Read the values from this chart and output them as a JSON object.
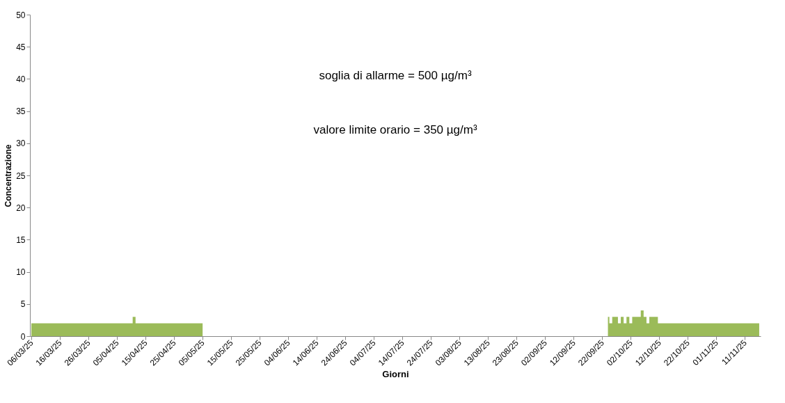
{
  "chart_data": {
    "xlabel": "Giorni",
    "ylabel": "Concentrazione",
    "annotations": [
      "soglia di allarme = 500 µg/m³",
      "valore limite orario = 350 µg/m³"
    ],
    "color": "#9bbb59",
    "ylim": [
      0,
      50
    ],
    "yticks": [
      0,
      5,
      10,
      15,
      20,
      25,
      30,
      35,
      40,
      45,
      50
    ],
    "grid": false,
    "categories": [
      "06/03/25",
      null,
      null,
      null,
      null,
      null,
      null,
      null,
      null,
      null,
      "16/03/25",
      null,
      null,
      null,
      null,
      null,
      null,
      null,
      null,
      null,
      "26/03/25",
      null,
      null,
      null,
      null,
      null,
      null,
      null,
      null,
      null,
      "05/04/25",
      null,
      null,
      null,
      null,
      null,
      null,
      null,
      null,
      null,
      "15/04/25",
      null,
      null,
      null,
      null,
      null,
      null,
      null,
      null,
      null,
      "25/04/25",
      null,
      null,
      null,
      null,
      null,
      null,
      null,
      null,
      null,
      "05/05/25",
      null,
      null,
      null,
      null,
      null,
      null,
      null,
      null,
      null,
      "15/05/25",
      null,
      null,
      null,
      null,
      null,
      null,
      null,
      null,
      null,
      "25/05/25",
      null,
      null,
      null,
      null,
      null,
      null,
      null,
      null,
      null,
      "04/06/25",
      null,
      null,
      null,
      null,
      null,
      null,
      null,
      null,
      null,
      "14/06/25",
      null,
      null,
      null,
      null,
      null,
      null,
      null,
      null,
      null,
      "24/06/25",
      null,
      null,
      null,
      null,
      null,
      null,
      null,
      null,
      null,
      "04/07/25",
      null,
      null,
      null,
      null,
      null,
      null,
      null,
      null,
      null,
      "14/07/25",
      null,
      null,
      null,
      null,
      null,
      null,
      null,
      null,
      null,
      "24/07/25",
      null,
      null,
      null,
      null,
      null,
      null,
      null,
      null,
      null,
      "03/08/25",
      null,
      null,
      null,
      null,
      null,
      null,
      null,
      null,
      null,
      "13/08/25",
      null,
      null,
      null,
      null,
      null,
      null,
      null,
      null,
      null,
      "23/08/25",
      null,
      null,
      null,
      null,
      null,
      null,
      null,
      null,
      null,
      "02/09/25",
      null,
      null,
      null,
      null,
      null,
      null,
      null,
      null,
      null,
      "12/09/25",
      null,
      null,
      null,
      null,
      null,
      null,
      null,
      null,
      null,
      "22/09/25",
      null,
      null,
      null,
      null,
      null,
      null,
      null,
      null,
      null,
      "02/10/25",
      null,
      null,
      null,
      null,
      null,
      null,
      null,
      null,
      null,
      "12/10/25",
      null,
      null,
      null,
      null,
      null,
      null,
      null,
      null,
      null,
      "22/10/25",
      null,
      null,
      null,
      null,
      null,
      null,
      null,
      null,
      null,
      "01/11/25",
      null,
      null,
      null,
      null,
      null,
      null,
      null,
      null,
      null,
      "11/11/25",
      null,
      null,
      null,
      null,
      null
    ],
    "type": "area",
    "values": [
      2,
      2,
      2,
      2,
      2,
      2,
      2,
      2,
      2,
      2,
      2,
      2,
      2,
      2,
      2,
      2,
      2,
      2,
      2,
      2,
      2,
      2,
      2,
      2,
      2,
      2,
      2,
      2,
      2,
      2,
      2,
      2,
      2,
      2,
      2,
      2,
      3,
      2,
      2,
      2,
      2,
      2,
      2,
      2,
      2,
      2,
      2,
      2,
      2,
      2,
      2,
      2,
      2,
      2,
      2,
      2,
      2,
      2,
      2,
      2,
      2,
      null,
      null,
      null,
      null,
      null,
      null,
      null,
      null,
      null,
      null,
      null,
      null,
      null,
      null,
      null,
      null,
      null,
      null,
      null,
      null,
      null,
      null,
      null,
      null,
      null,
      null,
      null,
      null,
      null,
      null,
      null,
      null,
      null,
      null,
      null,
      null,
      null,
      null,
      null,
      null,
      null,
      null,
      null,
      null,
      null,
      null,
      null,
      null,
      null,
      null,
      null,
      null,
      null,
      null,
      null,
      null,
      null,
      null,
      null,
      null,
      null,
      null,
      null,
      null,
      null,
      null,
      null,
      null,
      null,
      null,
      null,
      null,
      null,
      null,
      null,
      null,
      null,
      null,
      null,
      null,
      null,
      null,
      null,
      null,
      null,
      null,
      null,
      null,
      null,
      null,
      null,
      null,
      null,
      null,
      null,
      null,
      null,
      null,
      null,
      null,
      null,
      null,
      null,
      null,
      null,
      null,
      null,
      null,
      null,
      null,
      null,
      null,
      null,
      null,
      null,
      null,
      null,
      null,
      null,
      null,
      null,
      null,
      null,
      null,
      null,
      null,
      null,
      null,
      null,
      null,
      null,
      null,
      null,
      null,
      null,
      null,
      null,
      null,
      null,
      null,
      null,
      3,
      2,
      3,
      3,
      2,
      3,
      2,
      3,
      2,
      3,
      3,
      3,
      4,
      3,
      2,
      3,
      3,
      3,
      2,
      2,
      2,
      2,
      2,
      2,
      2,
      2,
      2,
      2,
      2,
      2,
      2,
      2,
      2,
      2,
      2,
      2,
      2,
      2,
      2,
      2,
      2,
      2,
      2,
      2,
      2,
      2,
      2,
      2,
      2,
      2,
      2,
      2,
      2,
      2
    ]
  }
}
